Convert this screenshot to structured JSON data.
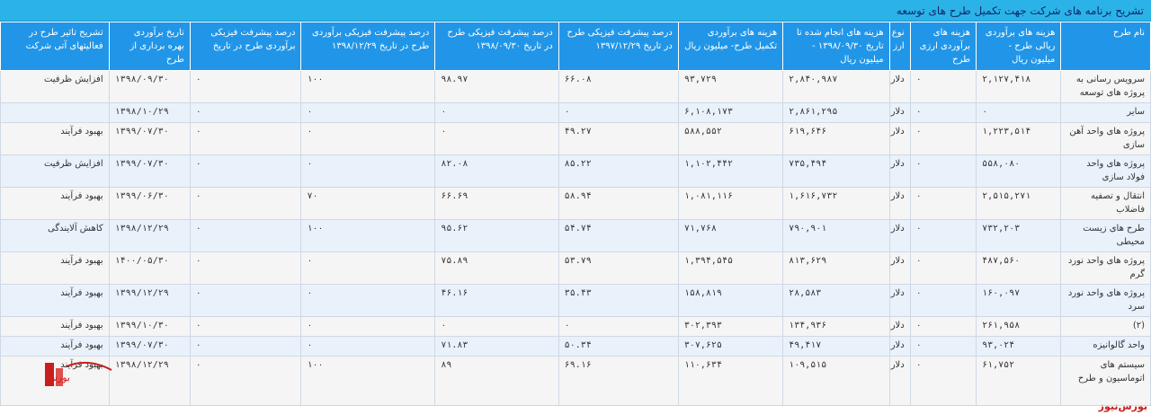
{
  "title": "تشریح برنامه های شرکت جهت تکمیل طرح های توسعه",
  "columns": [
    "نام طرح",
    "هزینه های برآوردی ریالی طرح - میلیون ریال",
    "هزینه های برآوردی ارزی طرح",
    "نوع ارز",
    "هزینه های انجام شده تا تاریخ ۱۳۹۸/۰۹/۳۰ - میلیون ریال",
    "هزینه های برآوردی تکمیل طرح- میلیون ریال",
    "درصد پیشرفت فیزیکی طرح در تاریخ ۱۳۹۷/۱۲/۲۹",
    "درصد پیشرفت فیزیکی طرح در تاریخ ۱۳۹۸/۰۹/۳۰",
    "درصد پیشرفت فیزیکی برآوردی طرح در تاریخ ۱۳۹۸/۱۲/۲۹",
    "درصد پیشرفت فیزیکی برآوردی طرح در تاریخ",
    "تاریخ برآوردی بهره برداری از طرح",
    "تشریح تاثیر طرح در فعالیتهای آتی شرکت"
  ],
  "rows": [
    [
      "سرویس رسانی به پروژه های توسعه",
      "۲,۱۲۷,۴۱۸",
      "۰",
      "دلار",
      "۲,۸۴۰,۹۸۷",
      "۹۳,۷۲۹",
      "۶۶.۰۸",
      "۹۸.۹۷",
      "۱۰۰",
      "۰",
      "۱۳۹۸/۰۹/۳۰",
      "افزایش ظرفیت"
    ],
    [
      "سایر",
      "۰",
      "۰",
      "دلار",
      "۲,۸۶۱,۲۹۵",
      "۶,۱۰۸,۱۷۳",
      "۰",
      "۰",
      "۰",
      "۰",
      "۱۳۹۸/۱۰/۲۹",
      ""
    ],
    [
      "پروژه های واحد آهن سازی",
      "۱,۲۲۳,۵۱۴",
      "۰",
      "دلار",
      "۶۱۹,۶۴۶",
      "۵۸۸,۵۵۲",
      "۴۹.۲۷",
      "۰",
      "۰",
      "۰",
      "۱۳۹۹/۰۷/۳۰",
      "بهبود فرآیند"
    ],
    [
      "پروژه های واحد فولاد سازی",
      "۵۵۸,۰۸۰",
      "۰",
      "دلار",
      "۷۳۵,۴۹۴",
      "۱,۱۰۲,۴۴۲",
      "۸۵.۲۲",
      "۸۲.۰۸",
      "۰",
      "۰",
      "۱۳۹۹/۰۷/۳۰",
      "افزایش ظرفیت"
    ],
    [
      "انتقال و تصفیه فاضلاب",
      "۲,۵۱۵,۲۷۱",
      "۰",
      "دلار",
      "۱,۶۱۶,۷۳۲",
      "۱,۰۸۱,۱۱۶",
      "۵۸.۹۴",
      "۶۶.۶۹",
      "۷۰",
      "۰",
      "۱۳۹۹/۰۶/۳۰",
      "بهبود فرآیند"
    ],
    [
      "طرح های زیست محیطی",
      "۷۳۲,۲۰۳",
      "۰",
      "دلار",
      "۷۹۰,۹۰۱",
      "۷۱,۷۶۸",
      "۵۴.۷۴",
      "۹۵.۶۲",
      "۱۰۰",
      "۰",
      "۱۳۹۸/۱۲/۲۹",
      "کاهش آلایندگی"
    ],
    [
      "پروژه های واحد نورد گرم",
      "۴۸۷,۵۶۰",
      "۰",
      "دلار",
      "۸۱۳,۶۲۹",
      "۱,۳۹۴,۵۴۵",
      "۵۳.۷۹",
      "۷۵.۸۹",
      "۰",
      "۰",
      "۱۴۰۰/۰۵/۳۰",
      "بهبود فرآیند"
    ],
    [
      "پروژه های واحد نورد سرد",
      "۱۶۰,۰۹۷",
      "۰",
      "دلار",
      "۲۸,۵۸۳",
      "۱۵۸,۸۱۹",
      "۳۵.۴۳",
      "۴۶.۱۶",
      "۰",
      "۰",
      "۱۳۹۹/۱۲/۲۹",
      "بهبود فرآیند"
    ],
    [
      "(۲)",
      "۲۶۱,۹۵۸",
      "۰",
      "دلار",
      "۱۳۴,۹۳۶",
      "۳۰۲,۳۹۳",
      "۰",
      "۰",
      "۰",
      "۰",
      "۱۳۹۹/۱۰/۳۰",
      "بهبود فرآیند"
    ],
    [
      "واحد گالوانیزه",
      "۹۳,۰۲۴",
      "۰",
      "دلار",
      "۴۹,۴۱۷",
      "۳۰۷,۶۲۵",
      "۵۰.۳۴",
      "۷۱.۸۳",
      "۰",
      "۰",
      "۱۳۹۹/۰۷/۳۰",
      "بهبود فرآیند"
    ],
    [
      "سیستم های اتوماسیون و طرح",
      "۶۱,۷۵۲",
      "۰",
      "دلار",
      "۱۰۹,۵۱۵",
      "۱۱۰,۶۳۴",
      "۶۹.۱۶",
      "۸۹",
      "۱۰۰",
      "۰",
      "۱۳۹۸/۱۲/۲۹",
      "بهبود فرآیند"
    ]
  ],
  "watermark": "بورس‌نیوز",
  "logo_text": "بورس نیوز",
  "colors": {
    "title_bar": "#2bb3e8",
    "header": "#2196e8",
    "alt_row": "#e9f1fb",
    "brand_red": "#c81e1e"
  }
}
